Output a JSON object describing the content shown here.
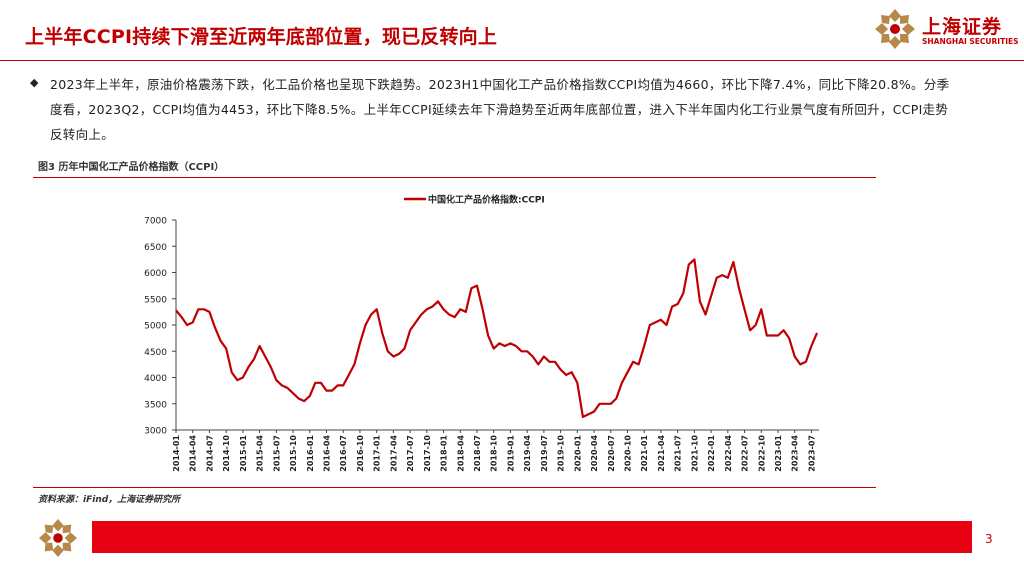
{
  "header": {
    "title": "上半年CCPI持续下滑至近两年底部位置，现已反转向上",
    "logo_cn": "上海证券",
    "logo_en": "SHANGHAI SECURITIES"
  },
  "bullet": {
    "text": "2023年上半年，原油价格震荡下跌，化工品价格也呈现下跌趋势。2023H1中国化工产品价格指数CCPI均值为4660，环比下降7.4%，同比下降20.8%。分季度看，2023Q2，CCPI均值为4453，环比下降8.5%。上半年CCPI延续去年下滑趋势至近两年底部位置，进入下半年国内化工行业景气度有所回升，CCPI走势反转向上。"
  },
  "figure": {
    "title": "图3 历年中国化工产品价格指数（CCPI）",
    "source": "资料来源：iFind，上海证券研究所"
  },
  "footer": {
    "page": "3"
  },
  "colors": {
    "accent": "#c00000",
    "line": "#c00000",
    "footer_bar": "#e60012"
  },
  "chart_data": {
    "type": "line",
    "title": "",
    "xlabel": "",
    "ylabel": "",
    "ylim": [
      3000,
      7000
    ],
    "yticks": [
      3000,
      3500,
      4000,
      4500,
      5000,
      5500,
      6000,
      6500,
      7000
    ],
    "xticks": [
      "2014-01",
      "2014-04",
      "2014-07",
      "2014-10",
      "2015-01",
      "2015-04",
      "2015-07",
      "2015-10",
      "2016-01",
      "2016-04",
      "2016-07",
      "2016-10",
      "2017-01",
      "2017-04",
      "2017-07",
      "2017-10",
      "2018-01",
      "2018-04",
      "2018-07",
      "2018-10",
      "2019-01",
      "2019-04",
      "2019-07",
      "2019-10",
      "2020-01",
      "2020-04",
      "2020-07",
      "2020-10",
      "2021-01",
      "2021-04",
      "2021-07",
      "2021-10",
      "2022-01",
      "2022-04",
      "2022-07",
      "2022-10",
      "2023-01",
      "2023-04",
      "2023-07"
    ],
    "grid": false,
    "legend": "top-center",
    "series": [
      {
        "name": "中国化工产品价格指数:CCPI",
        "x": [
          "2014-01",
          "2014-02",
          "2014-03",
          "2014-04",
          "2014-05",
          "2014-06",
          "2014-07",
          "2014-08",
          "2014-09",
          "2014-10",
          "2014-11",
          "2014-12",
          "2015-01",
          "2015-02",
          "2015-03",
          "2015-04",
          "2015-05",
          "2015-06",
          "2015-07",
          "2015-08",
          "2015-09",
          "2015-10",
          "2015-11",
          "2015-12",
          "2016-01",
          "2016-02",
          "2016-03",
          "2016-04",
          "2016-05",
          "2016-06",
          "2016-07",
          "2016-08",
          "2016-09",
          "2016-10",
          "2016-11",
          "2016-12",
          "2017-01",
          "2017-02",
          "2017-03",
          "2017-04",
          "2017-05",
          "2017-06",
          "2017-07",
          "2017-08",
          "2017-09",
          "2017-10",
          "2017-11",
          "2017-12",
          "2018-01",
          "2018-02",
          "2018-03",
          "2018-04",
          "2018-05",
          "2018-06",
          "2018-07",
          "2018-08",
          "2018-09",
          "2018-10",
          "2018-11",
          "2018-12",
          "2019-01",
          "2019-02",
          "2019-03",
          "2019-04",
          "2019-05",
          "2019-06",
          "2019-07",
          "2019-08",
          "2019-09",
          "2019-10",
          "2019-11",
          "2019-12",
          "2020-01",
          "2020-02",
          "2020-03",
          "2020-04",
          "2020-05",
          "2020-06",
          "2020-07",
          "2020-08",
          "2020-09",
          "2020-10",
          "2020-11",
          "2020-12",
          "2021-01",
          "2021-02",
          "2021-03",
          "2021-04",
          "2021-05",
          "2021-06",
          "2021-07",
          "2021-08",
          "2021-09",
          "2021-10",
          "2021-11",
          "2021-12",
          "2022-01",
          "2022-02",
          "2022-03",
          "2022-04",
          "2022-05",
          "2022-06",
          "2022-07",
          "2022-08",
          "2022-09",
          "2022-10",
          "2022-11",
          "2022-12",
          "2023-01",
          "2023-02",
          "2023-03",
          "2023-04",
          "2023-05",
          "2023-06",
          "2023-07",
          "2023-08"
        ],
        "values": [
          5280,
          5150,
          5000,
          5050,
          5300,
          5300,
          5250,
          4950,
          4700,
          4550,
          4100,
          3950,
          4000,
          4200,
          4350,
          4600,
          4400,
          4200,
          3950,
          3850,
          3800,
          3700,
          3600,
          3550,
          3650,
          3900,
          3900,
          3750,
          3750,
          3850,
          3850,
          4050,
          4250,
          4650,
          5000,
          5200,
          5300,
          4850,
          4500,
          4400,
          4450,
          4550,
          4900,
          5050,
          5200,
          5300,
          5350,
          5450,
          5300,
          5200,
          5150,
          5300,
          5250,
          5700,
          5750,
          5300,
          4800,
          4550,
          4650,
          4600,
          4650,
          4600,
          4500,
          4500,
          4400,
          4250,
          4400,
          4300,
          4300,
          4150,
          4050,
          4100,
          3900,
          3250,
          3300,
          3350,
          3500,
          3500,
          3500,
          3600,
          3900,
          4100,
          4300,
          4250,
          4600,
          5000,
          5050,
          5100,
          5000,
          5350,
          5400,
          5600,
          6150,
          6250,
          5450,
          5200,
          5550,
          5900,
          5950,
          5900,
          6200,
          5700,
          5300,
          4900,
          5000,
          5300,
          4800,
          4800,
          4800,
          4900,
          4750,
          4400,
          4250,
          4300,
          4600,
          4850
        ]
      }
    ]
  }
}
